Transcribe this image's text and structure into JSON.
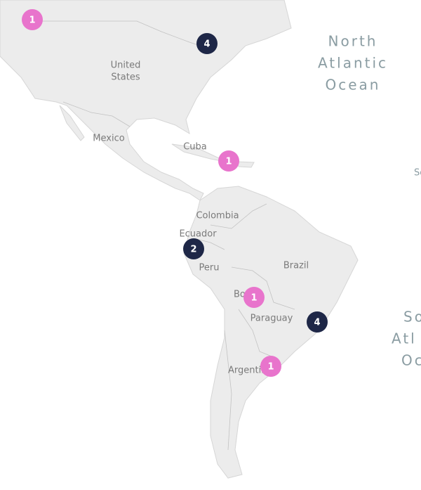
{
  "labels": [
    [
      "United",
      "States"
    ],
    [
      "Mexico"
    ],
    [
      "Cuba"
    ],
    [
      "Colombia"
    ],
    [
      "Ecuador"
    ],
    [
      "Peru"
    ],
    [
      "Brazil"
    ],
    [
      "Bolivia"
    ],
    [
      "Paraguay"
    ],
    [
      "Argentina"
    ]
  ],
  "oceans": [
    [
      "North",
      "Atlantic",
      "Ocean"
    ],
    [
      "So",
      "Atl",
      "Oc"
    ],
    [
      "Se"
    ]
  ],
  "markers": [
    {
      "count": 1,
      "color": "#e874cc"
    },
    {
      "count": 4,
      "color": "#1e2747"
    },
    {
      "count": 1,
      "color": "#e874cc"
    },
    {
      "count": 2,
      "color": "#1e2747"
    },
    {
      "count": 1,
      "color": "#e874cc"
    },
    {
      "count": 4,
      "color": "#1e2747"
    },
    {
      "count": 1,
      "color": "#e874cc"
    }
  ]
}
